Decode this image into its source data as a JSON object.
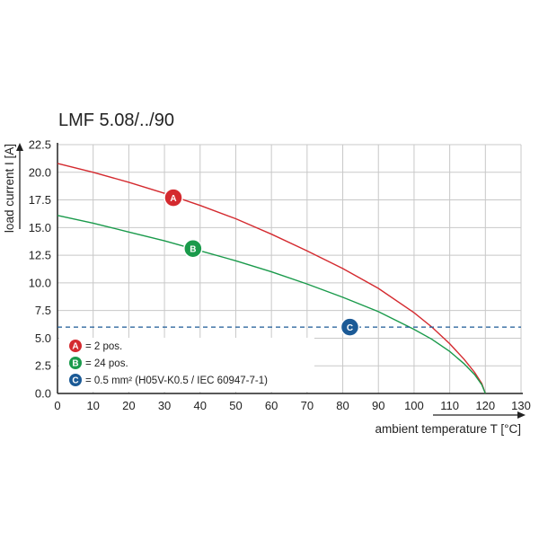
{
  "chart_data": {
    "type": "line",
    "title": "LMF 5.08/../90",
    "xlabel": "ambient temperature T [°C]",
    "ylabel": "load current I [A]",
    "xlim": [
      0,
      130
    ],
    "ylim": [
      0,
      22.5
    ],
    "x_ticks": [
      "0",
      "10",
      "20",
      "30",
      "40",
      "50",
      "60",
      "70",
      "80",
      "90",
      "100",
      "110",
      "120",
      "130"
    ],
    "y_ticks": [
      "0.0",
      "2.5",
      "5.0",
      "7.5",
      "10.0",
      "12.5",
      "15.0",
      "17.5",
      "20.0",
      "22.5"
    ],
    "grid": true,
    "series": [
      {
        "name": "A",
        "color": "#d42a2f",
        "x": [
          0,
          10,
          20,
          30,
          40,
          50,
          60,
          70,
          80,
          90,
          100,
          105,
          110,
          114,
          117,
          119,
          120
        ],
        "y": [
          20.8,
          20.0,
          19.1,
          18.1,
          17.0,
          15.8,
          14.4,
          12.9,
          11.3,
          9.5,
          7.3,
          6.0,
          4.5,
          3.1,
          1.9,
          0.9,
          0.0
        ]
      },
      {
        "name": "B",
        "color": "#1a9a4b",
        "x": [
          0,
          10,
          20,
          30,
          40,
          50,
          60,
          70,
          80,
          90,
          100,
          105,
          110,
          114,
          117,
          119,
          120
        ],
        "y": [
          16.1,
          15.4,
          14.6,
          13.8,
          12.9,
          12.0,
          11.0,
          9.9,
          8.7,
          7.4,
          5.8,
          4.9,
          3.8,
          2.7,
          1.7,
          0.8,
          0.0
        ]
      },
      {
        "name": "C",
        "color": "#1b5a96",
        "style": "dashed",
        "x": [
          0,
          130
        ],
        "y": [
          6.0,
          6.0
        ]
      }
    ],
    "legend": [
      {
        "badge": "A",
        "color": "#d42a2f",
        "text": "= 2 pos."
      },
      {
        "badge": "B",
        "color": "#1a9a4b",
        "text": "= 24 pos."
      },
      {
        "badge": "C",
        "color": "#1b5a96",
        "text": "= 0.5 mm² (H05V-K0.5 / IEC 60947-7-1)"
      }
    ],
    "markers": [
      {
        "badge": "A",
        "color": "#d42a2f",
        "x": 32.5,
        "y": 17.7
      },
      {
        "badge": "B",
        "color": "#1a9a4b",
        "x": 38,
        "y": 13.1
      },
      {
        "badge": "C",
        "color": "#1b5a96",
        "x": 82,
        "y": 6.0
      }
    ],
    "legend_placement": "bottom-left"
  }
}
